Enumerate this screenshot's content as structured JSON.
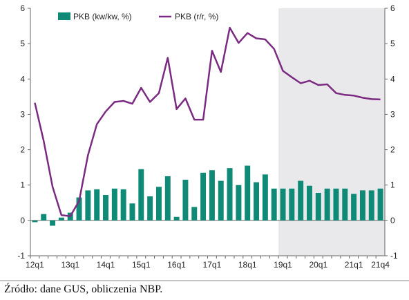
{
  "chart_data": {
    "type": "bar+line",
    "categories": [
      "12q1",
      "12q2",
      "12q3",
      "12q4",
      "13q1",
      "13q2",
      "13q3",
      "13q4",
      "14q1",
      "14q2",
      "14q3",
      "14q4",
      "15q1",
      "15q2",
      "15q3",
      "15q4",
      "16q1",
      "16q2",
      "16q3",
      "16q4",
      "17q1",
      "17q2",
      "17q3",
      "17q4",
      "18q1",
      "18q2",
      "18q3",
      "18q4",
      "19q1",
      "19q2",
      "19q3",
      "19q4",
      "20q1",
      "20q2",
      "20q3",
      "20q4",
      "21q1",
      "21q2",
      "21q3",
      "21q4"
    ],
    "x_tick_labels": [
      "12q1",
      "13q1",
      "14q1",
      "15q1",
      "16q1",
      "17q1",
      "18q1",
      "19q1",
      "20q1",
      "21q1",
      "21q4"
    ],
    "x_tick_categories": [
      "12q1",
      "13q1",
      "14q1",
      "15q1",
      "16q1",
      "17q1",
      "18q1",
      "19q1",
      "20q1",
      "21q1",
      "21q4"
    ],
    "ylim": [
      -1,
      6
    ],
    "y_ticks": [
      -1,
      0,
      1,
      2,
      3,
      4,
      5,
      6
    ],
    "forecast_shading_from": "19q1",
    "series": [
      {
        "name": "PKB (kw/kw, %)",
        "type": "bar",
        "color": "#0f8a76",
        "values": [
          -0.05,
          0.18,
          -0.15,
          0.08,
          0.22,
          0.65,
          0.85,
          0.88,
          0.72,
          0.9,
          0.88,
          0.48,
          1.45,
          0.68,
          0.95,
          1.25,
          0.1,
          1.15,
          0.38,
          1.35,
          1.42,
          1.12,
          1.48,
          1.0,
          1.55,
          1.08,
          1.3,
          0.9,
          0.9,
          0.9,
          1.12,
          0.98,
          0.78,
          0.9,
          0.9,
          0.9,
          0.75,
          0.85,
          0.85,
          0.9
        ]
      },
      {
        "name": "PKB (r/r, %)",
        "type": "line",
        "color": "#7b2a82",
        "values": [
          3.33,
          2.25,
          0.95,
          0.15,
          0.12,
          0.55,
          1.85,
          2.72,
          3.08,
          3.35,
          3.38,
          3.3,
          3.75,
          3.35,
          3.6,
          4.6,
          3.15,
          3.45,
          2.85,
          2.85,
          4.8,
          4.2,
          5.45,
          5.02,
          5.3,
          5.15,
          5.12,
          4.85,
          4.23,
          4.05,
          3.88,
          3.95,
          3.83,
          3.85,
          3.6,
          3.55,
          3.53,
          3.47,
          3.43,
          3.42
        ]
      }
    ]
  },
  "source": "Źródło: dane GUS, obliczenia NBP."
}
